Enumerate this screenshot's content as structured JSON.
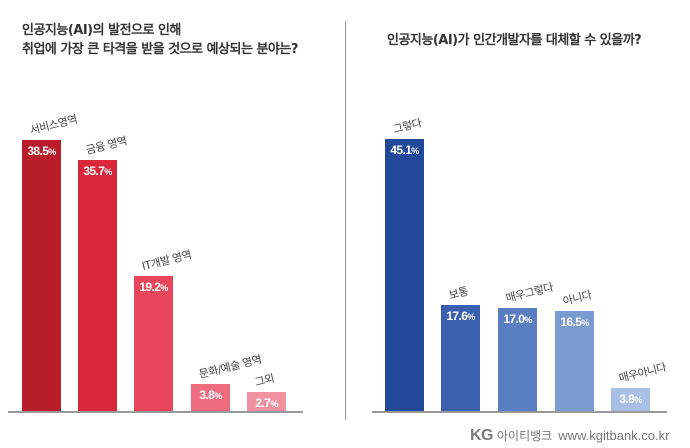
{
  "chart_data": [
    {
      "type": "bar",
      "title": "인공지능(AI)의 발전으로 인해 취업에 가장 큰 타격을 받을 것으로 예상되는 분야는?",
      "title_lines": [
        "인공지능(AI)의 발전으로 인해",
        "취업에 가장 큰 타격을 받을 것으로 예상되는 분야는?"
      ],
      "categories": [
        "서비스영역",
        "금융 영역",
        "IT개발 영역",
        "문화/예술 영역",
        "그외"
      ],
      "values": [
        38.5,
        35.7,
        19.2,
        3.8,
        2.7
      ],
      "value_labels": [
        "38.5",
        "35.7",
        "19.2",
        "3.8",
        "2.7"
      ],
      "unit": "%",
      "colors": [
        "#b91c2a",
        "#d9283c",
        "#e8465a",
        "#ee6c7e",
        "#f2919f"
      ],
      "xlabel": "",
      "ylabel": "",
      "ylim": [
        0,
        40
      ],
      "grid": false,
      "legend": "none"
    },
    {
      "type": "bar",
      "title": "인공지능(AI)가 인간개발자를 대체할 수 있을까?",
      "categories": [
        "그렇다",
        "보통",
        "매우그렇다",
        "아니다",
        "매우아니다"
      ],
      "values": [
        45.1,
        17.6,
        17.0,
        16.5,
        3.8
      ],
      "value_labels": [
        "45.1",
        "17.6",
        "17.0",
        "16.5",
        "3.8"
      ],
      "unit": "%",
      "colors": [
        "#234a9a",
        "#3a5fae",
        "#5a7ec2",
        "#7a9bd0",
        "#a9c0e6"
      ],
      "xlabel": "",
      "ylabel": "",
      "ylim": [
        0,
        47
      ],
      "grid": false,
      "legend": "none"
    }
  ],
  "footer": {
    "logo": "KG",
    "brand": "아이티뱅크",
    "url": "www.kgitbank.co.kr"
  }
}
